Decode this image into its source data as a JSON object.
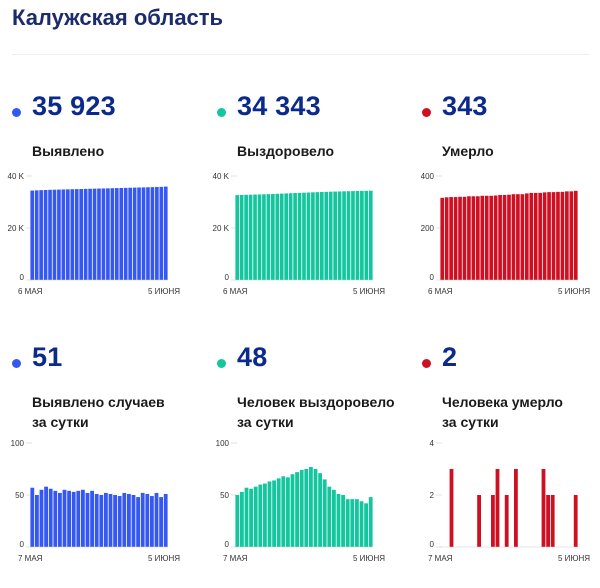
{
  "title": "Калужская область",
  "colors": {
    "blue": "#3658f2",
    "green": "#13c69d",
    "red": "#cf0f22",
    "value_text": "#0b2a8c",
    "title_text": "#1c2b6b"
  },
  "cards": [
    {
      "value": "35 923",
      "label_lines": [
        "Выявлено"
      ]
    },
    {
      "value": "34 343",
      "label_lines": [
        "Выздоровело"
      ]
    },
    {
      "value": "343",
      "label_lines": [
        "Умерло"
      ]
    },
    {
      "value": "51",
      "label_lines": [
        "Выявлено случаев",
        "за сутки"
      ]
    },
    {
      "value": "48",
      "label_lines": [
        "Человек выздоровело",
        "за сутки"
      ]
    },
    {
      "value": "2",
      "label_lines": [
        "Человека умерло",
        "за сутки"
      ]
    }
  ],
  "chart_data": [
    {
      "type": "bar",
      "color": "blue",
      "ylim": [
        0,
        40000
      ],
      "yticks": [
        {
          "value": 0,
          "label": "0"
        },
        {
          "value": 20000,
          "label": "20 K"
        },
        {
          "value": 40000,
          "label": "40 K"
        }
      ],
      "x_start_label": "6 МАЯ",
      "x_end_label": "5 ИЮНЯ",
      "values": [
        34400,
        34490,
        34560,
        34620,
        34680,
        34730,
        34780,
        34830,
        34870,
        34920,
        34960,
        35000,
        35040,
        35090,
        35130,
        35170,
        35210,
        35250,
        35300,
        35350,
        35390,
        35440,
        35490,
        35530,
        35580,
        35620,
        35670,
        35720,
        35770,
        35820,
        35923
      ]
    },
    {
      "type": "bar",
      "color": "green",
      "ylim": [
        0,
        40000
      ],
      "yticks": [
        {
          "value": 0,
          "label": "0"
        },
        {
          "value": 20000,
          "label": "20 K"
        },
        {
          "value": 40000,
          "label": "40 K"
        }
      ],
      "x_start_label": "6 МАЯ",
      "x_end_label": "5 ИЮНЯ",
      "values": [
        32650,
        32700,
        32760,
        32810,
        32860,
        32910,
        32970,
        33030,
        33090,
        33160,
        33230,
        33300,
        33370,
        33440,
        33510,
        33580,
        33650,
        33720,
        33790,
        33850,
        33910,
        33960,
        34010,
        34060,
        34110,
        34150,
        34190,
        34230,
        34270,
        34300,
        34343
      ]
    },
    {
      "type": "bar",
      "color": "red",
      "ylim": [
        0,
        400
      ],
      "yticks": [
        {
          "value": 0,
          "label": "0"
        },
        {
          "value": 200,
          "label": "200"
        },
        {
          "value": 400,
          "label": "400"
        }
      ],
      "x_start_label": "6 МАЯ",
      "x_end_label": "5 ИЮНЯ",
      "values": [
        316,
        318,
        319,
        319,
        320,
        320,
        322,
        322,
        322,
        324,
        324,
        324,
        325,
        327,
        327,
        328,
        330,
        330,
        330,
        333,
        335,
        335,
        335,
        337,
        338,
        338,
        339,
        339,
        341,
        341,
        343
      ]
    },
    {
      "type": "bar",
      "color": "blue",
      "ylim": [
        0,
        100
      ],
      "yticks": [
        {
          "value": 0,
          "label": "0"
        },
        {
          "value": 50,
          "label": "50"
        },
        {
          "value": 100,
          "label": "100"
        }
      ],
      "x_start_label": "7 МАЯ",
      "x_end_label": "5 ИЮНЯ",
      "values": [
        57,
        50,
        55,
        58,
        56,
        54,
        52,
        55,
        54,
        53,
        54,
        55,
        52,
        54,
        51,
        50,
        52,
        51,
        50,
        49,
        52,
        51,
        50,
        48,
        52,
        51,
        49,
        52,
        48,
        51
      ]
    },
    {
      "type": "bar",
      "color": "green",
      "ylim": [
        0,
        100
      ],
      "yticks": [
        {
          "value": 0,
          "label": "0"
        },
        {
          "value": 50,
          "label": "50"
        },
        {
          "value": 100,
          "label": "100"
        }
      ],
      "x_start_label": "7 МАЯ",
      "x_end_label": "5 ИЮНЯ",
      "values": [
        50,
        53,
        57,
        56,
        58,
        60,
        61,
        63,
        64,
        66,
        68,
        67,
        70,
        72,
        74,
        75,
        77,
        75,
        71,
        65,
        58,
        55,
        51,
        50,
        46,
        46,
        46,
        44,
        42,
        48
      ]
    },
    {
      "type": "bar",
      "color": "red",
      "ylim": [
        0,
        4
      ],
      "yticks": [
        {
          "value": 0,
          "label": "0"
        },
        {
          "value": 2,
          "label": "2"
        },
        {
          "value": 4,
          "label": "4"
        }
      ],
      "x_start_label": "7 МАЯ",
      "x_end_label": "5 ИЮНЯ",
      "values": [
        0,
        0,
        3,
        0,
        0,
        0,
        0,
        0,
        2,
        0,
        0,
        2,
        3,
        0,
        2,
        0,
        3,
        0,
        0,
        0,
        0,
        0,
        3,
        2,
        2,
        0,
        0,
        0,
        0,
        2
      ]
    }
  ]
}
